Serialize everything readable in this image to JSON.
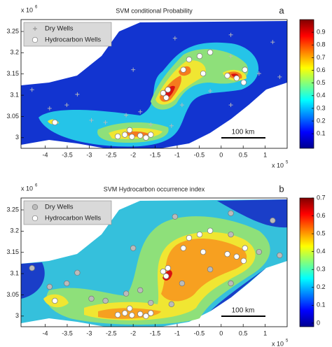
{
  "chart_data": [
    {
      "type": "map",
      "title": "SVM conditional Probability",
      "panel_label": "a",
      "xlim": [
        -4.55,
        1.5
      ],
      "ylim": [
        2.975,
        3.278
      ],
      "xticks": [
        -4,
        -3.5,
        -3,
        -2.5,
        -2,
        -1.5,
        -1,
        -0.5,
        0,
        0.5,
        1
      ],
      "yticks": [
        3,
        3.05,
        3.1,
        3.15,
        3.2,
        3.25
      ],
      "x_multiplier": {
        "base": "x 10",
        "power": "5"
      },
      "y_multiplier": {
        "base": "x 10",
        "power": "6"
      },
      "colorbar": {
        "clim": [
          -0.015,
          1.0
        ],
        "ticks": [
          0.1,
          0.2,
          0.3,
          0.4,
          0.5,
          0.6,
          0.7,
          0.8,
          0.9
        ]
      },
      "scale_bar_label": "100 km",
      "series": [
        {
          "name": "Dry Wells",
          "marker": "plus",
          "color": "#bbbbbb",
          "x": [
            -4.3,
            -3.9,
            -3.51,
            -3.27,
            -2.95,
            -2.63,
            -2.16,
            -1.84,
            -1.6,
            -1.13,
            -0.89,
            -0.25,
            0.22,
            0.86,
            1.17,
            0.22,
            -1.05,
            -2.0,
            0.22,
            1.33
          ],
          "y": [
            3.113,
            3.069,
            3.077,
            3.102,
            3.041,
            3.036,
            3.053,
            3.061,
            3.031,
            3.028,
            3.077,
            3.11,
            3.077,
            3.151,
            3.225,
            3.242,
            3.234,
            3.16,
            3.192,
            3.143
          ]
        },
        {
          "name": "Hydrocarbon Wells",
          "marker": "circle",
          "color": "#ffffff",
          "x": [
            -2.35,
            -2.19,
            -2.03,
            -1.84,
            -1.71,
            -1.6,
            -2.08,
            -1.25,
            -1.32,
            -1.21,
            -0.86,
            -0.73,
            -0.49,
            -0.25,
            -0.41,
            0.14,
            0.35,
            0.51,
            0.54,
            -3.78
          ],
          "y": [
            3.003,
            3.007,
            3.002,
            3.005,
            3.0,
            3.007,
            3.018,
            3.094,
            3.105,
            3.113,
            3.16,
            3.184,
            3.192,
            3.201,
            3.151,
            3.146,
            3.14,
            3.13,
            3.16,
            3.036
          ]
        }
      ]
    },
    {
      "type": "map",
      "title": "SVM Hydrocarbon occurrence index",
      "panel_label": "b",
      "xlim": [
        -4.55,
        1.5
      ],
      "ylim": [
        2.975,
        3.278
      ],
      "xticks": [
        -4,
        -3.5,
        -3,
        -2.5,
        -2,
        -1.5,
        -1,
        -0.5,
        0,
        0.5,
        1
      ],
      "yticks": [
        3,
        3.05,
        3.1,
        3.15,
        3.2,
        3.25
      ],
      "x_multiplier": {
        "base": "x 10",
        "power": "5"
      },
      "y_multiplier": {
        "base": "x 10",
        "power": "6"
      },
      "colorbar": {
        "clim": [
          -0.02,
          0.7
        ],
        "ticks": [
          0,
          0.1,
          0.2,
          0.3,
          0.4,
          0.5,
          0.6,
          0.7
        ]
      },
      "scale_bar_label": "100 km",
      "series": [
        {
          "name": "Dry Wells",
          "marker": "circle",
          "color": "#bbbbbb",
          "x": [
            -4.3,
            -3.9,
            -3.51,
            -3.27,
            -2.95,
            -2.63,
            -2.16,
            -1.84,
            -1.6,
            -1.13,
            -0.89,
            -0.25,
            0.22,
            0.86,
            1.17,
            0.22,
            -1.05,
            -2.0,
            0.22,
            1.33
          ],
          "y": [
            3.113,
            3.069,
            3.077,
            3.102,
            3.041,
            3.036,
            3.053,
            3.061,
            3.031,
            3.028,
            3.077,
            3.11,
            3.077,
            3.151,
            3.225,
            3.242,
            3.234,
            3.16,
            3.192,
            3.143
          ]
        },
        {
          "name": "Hydrocarbon Wells",
          "marker": "circle",
          "color": "#ffffff",
          "x": [
            -2.35,
            -2.19,
            -2.03,
            -1.84,
            -1.71,
            -1.6,
            -2.08,
            -1.25,
            -1.32,
            -1.21,
            -0.86,
            -0.73,
            -0.49,
            -0.25,
            -0.41,
            0.14,
            0.35,
            0.51,
            0.54,
            -3.78
          ],
          "y": [
            3.003,
            3.007,
            3.002,
            3.005,
            3.0,
            3.007,
            3.018,
            3.094,
            3.105,
            3.113,
            3.16,
            3.184,
            3.192,
            3.201,
            3.151,
            3.146,
            3.14,
            3.13,
            3.16,
            3.036
          ]
        }
      ]
    }
  ]
}
